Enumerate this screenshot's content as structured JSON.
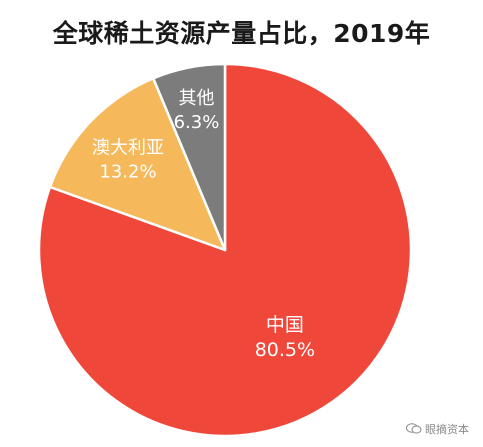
{
  "chart_data": {
    "type": "pie",
    "title": "全球稀土资源产量占比，2019年",
    "slices": [
      {
        "label": "中国",
        "value": 80.5,
        "value_label": "80.5%",
        "color": "#ef473a"
      },
      {
        "label": "澳大利亚",
        "value": 13.2,
        "value_label": "13.2%",
        "color": "#f5b95b"
      },
      {
        "label": "其他",
        "value": 6.3,
        "value_label": "6.3%",
        "color": "#7c7c7c"
      }
    ],
    "start_angle_deg": 0,
    "direction": "clockwise",
    "slice_border_color": "#ffffff",
    "legend": "none"
  },
  "watermark": {
    "text": "眼摘资本"
  }
}
